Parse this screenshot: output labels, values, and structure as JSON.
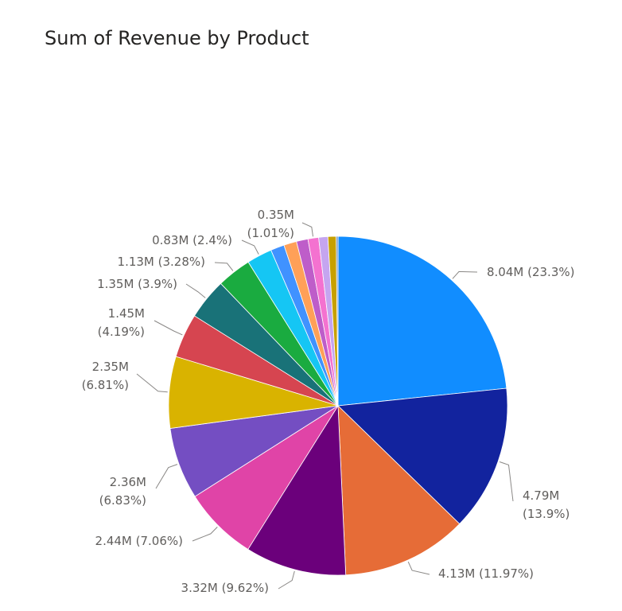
{
  "visual": {
    "title": "Sum of Revenue by Product"
  },
  "chart_data": {
    "type": "pie",
    "title": "Sum of Revenue by Product",
    "slices": [
      {
        "value": 8.04,
        "label": "8.04M (23.3%)",
        "color": "#118DFF"
      },
      {
        "value": 4.79,
        "label": "4.79M (13.9%)",
        "color": "#12239E"
      },
      {
        "value": 4.13,
        "label": "4.13M (11.97%)",
        "color": "#E66C37"
      },
      {
        "value": 3.32,
        "label": "3.32M (9.62%)",
        "color": "#6B007B"
      },
      {
        "value": 2.44,
        "label": "2.44M (7.06%)",
        "color": "#E044A7"
      },
      {
        "value": 2.36,
        "label": "2.36M (6.83%)",
        "color": "#744EC2"
      },
      {
        "value": 2.35,
        "label": "2.35M (6.81%)",
        "color": "#D9B300"
      },
      {
        "value": 1.45,
        "label": "1.45M (4.19%)",
        "color": "#D64550"
      },
      {
        "value": 1.35,
        "label": "1.35M (3.9%)",
        "color": "#197278"
      },
      {
        "value": 1.13,
        "label": "1.13M (3.28%)",
        "color": "#1AAB40"
      },
      {
        "value": 0.83,
        "label": "0.83M (2.4%)",
        "color": "#15C6F4"
      },
      {
        "value": 0.45,
        "label": "",
        "color": "#4092FF"
      },
      {
        "value": 0.42,
        "label": "",
        "color": "#FFA058"
      },
      {
        "value": 0.38,
        "label": "",
        "color": "#BE5DC9"
      },
      {
        "value": 0.35,
        "label": "0.35M (1.01%)",
        "color": "#F472D0"
      },
      {
        "value": 0.3,
        "label": "",
        "color": "#C5A5F0"
      },
      {
        "value": 0.27,
        "label": "",
        "color": "#C7A000"
      },
      {
        "value": 0.06,
        "label": "",
        "color": "#6E8FC0"
      }
    ]
  }
}
